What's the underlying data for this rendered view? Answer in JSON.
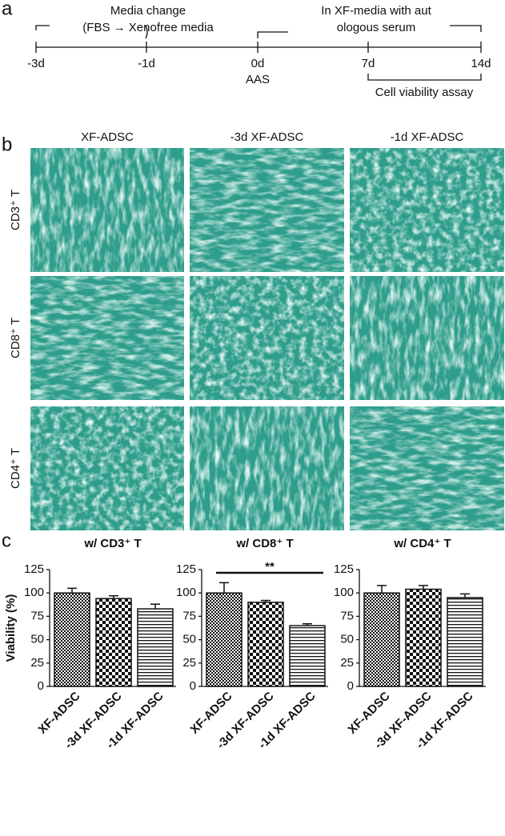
{
  "panel_a": {
    "label": "a",
    "timeline_ticks": [
      "-3d",
      "-1d",
      "0d",
      "7d",
      "14d"
    ],
    "media_change": "Media change",
    "media_detail": "(FBS → Xenofree media",
    "xf_media_1": "In XF-media with aut",
    "xf_media_2": "ologous serum",
    "aas": "AAS",
    "assay": "Cell viability assay"
  },
  "panel_b": {
    "label": "b",
    "columns": [
      "XF-ADSC",
      "-3d XF-ADSC",
      "-1d XF-ADSC"
    ],
    "rows": [
      "CD3⁺ T",
      "CD8⁺ T",
      "CD4⁺ T"
    ]
  },
  "panel_c": {
    "label": "c"
  },
  "chart_data": [
    {
      "type": "bar",
      "title": "w/ CD3⁺ T",
      "y_label": "Viability (%)",
      "categories": [
        "XF-ADSC",
        "-3d XF-ADSC",
        "-1d XF-ADSC"
      ],
      "values": [
        100,
        94,
        83
      ],
      "errors": [
        5,
        3,
        5
      ],
      "patterns": [
        "fine-check",
        "check",
        "h-stripes"
      ],
      "ylim": [
        0,
        125
      ],
      "yticks": [
        0,
        25,
        50,
        75,
        100,
        125
      ]
    },
    {
      "type": "bar",
      "title": "w/ CD8⁺ T",
      "categories": [
        "XF-ADSC",
        "-3d XF-ADSC",
        "-1d XF-ADSC"
      ],
      "values": [
        100,
        90,
        65
      ],
      "errors": [
        11,
        2,
        2
      ],
      "patterns": [
        "fine-check",
        "check",
        "h-stripes"
      ],
      "annotation": "**",
      "ylim": [
        0,
        125
      ],
      "yticks": [
        0,
        25,
        50,
        75,
        100,
        125
      ]
    },
    {
      "type": "bar",
      "title": "w/ CD4⁺ T",
      "categories": [
        "XF-ADSC",
        "-3d XF-ADSC",
        "-1d XF-ADSC"
      ],
      "values": [
        100,
        104,
        95
      ],
      "errors": [
        8,
        4,
        4
      ],
      "patterns": [
        "fine-check",
        "check",
        "h-stripes"
      ],
      "ylim": [
        0,
        125
      ],
      "yticks": [
        0,
        25,
        50,
        75,
        100,
        125
      ]
    }
  ]
}
